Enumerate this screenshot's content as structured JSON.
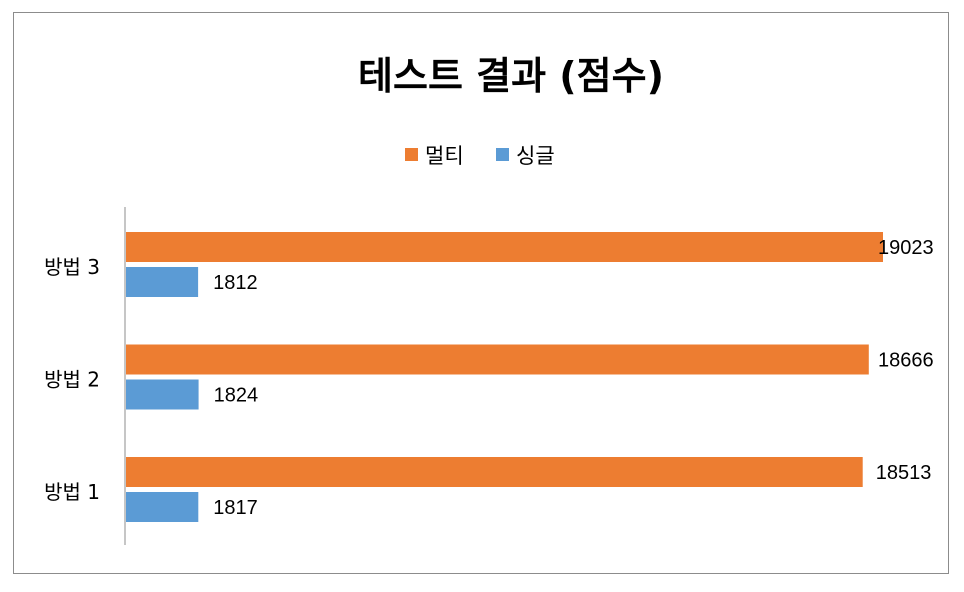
{
  "chart_data": {
    "type": "bar",
    "orientation": "horizontal",
    "title": "테스트 결과 (점수)",
    "categories": [
      "방법 3",
      "방법 2",
      "방법 1"
    ],
    "series": [
      {
        "name": "멀티",
        "color": "#ED7D31",
        "values": [
          19023,
          18666,
          18513
        ]
      },
      {
        "name": "싱글",
        "color": "#5B9BD5",
        "values": [
          1812,
          1824,
          1817
        ]
      }
    ],
    "xlim": [
      0,
      19023
    ],
    "legend_position": "top",
    "grid": false,
    "data_labels": true
  }
}
